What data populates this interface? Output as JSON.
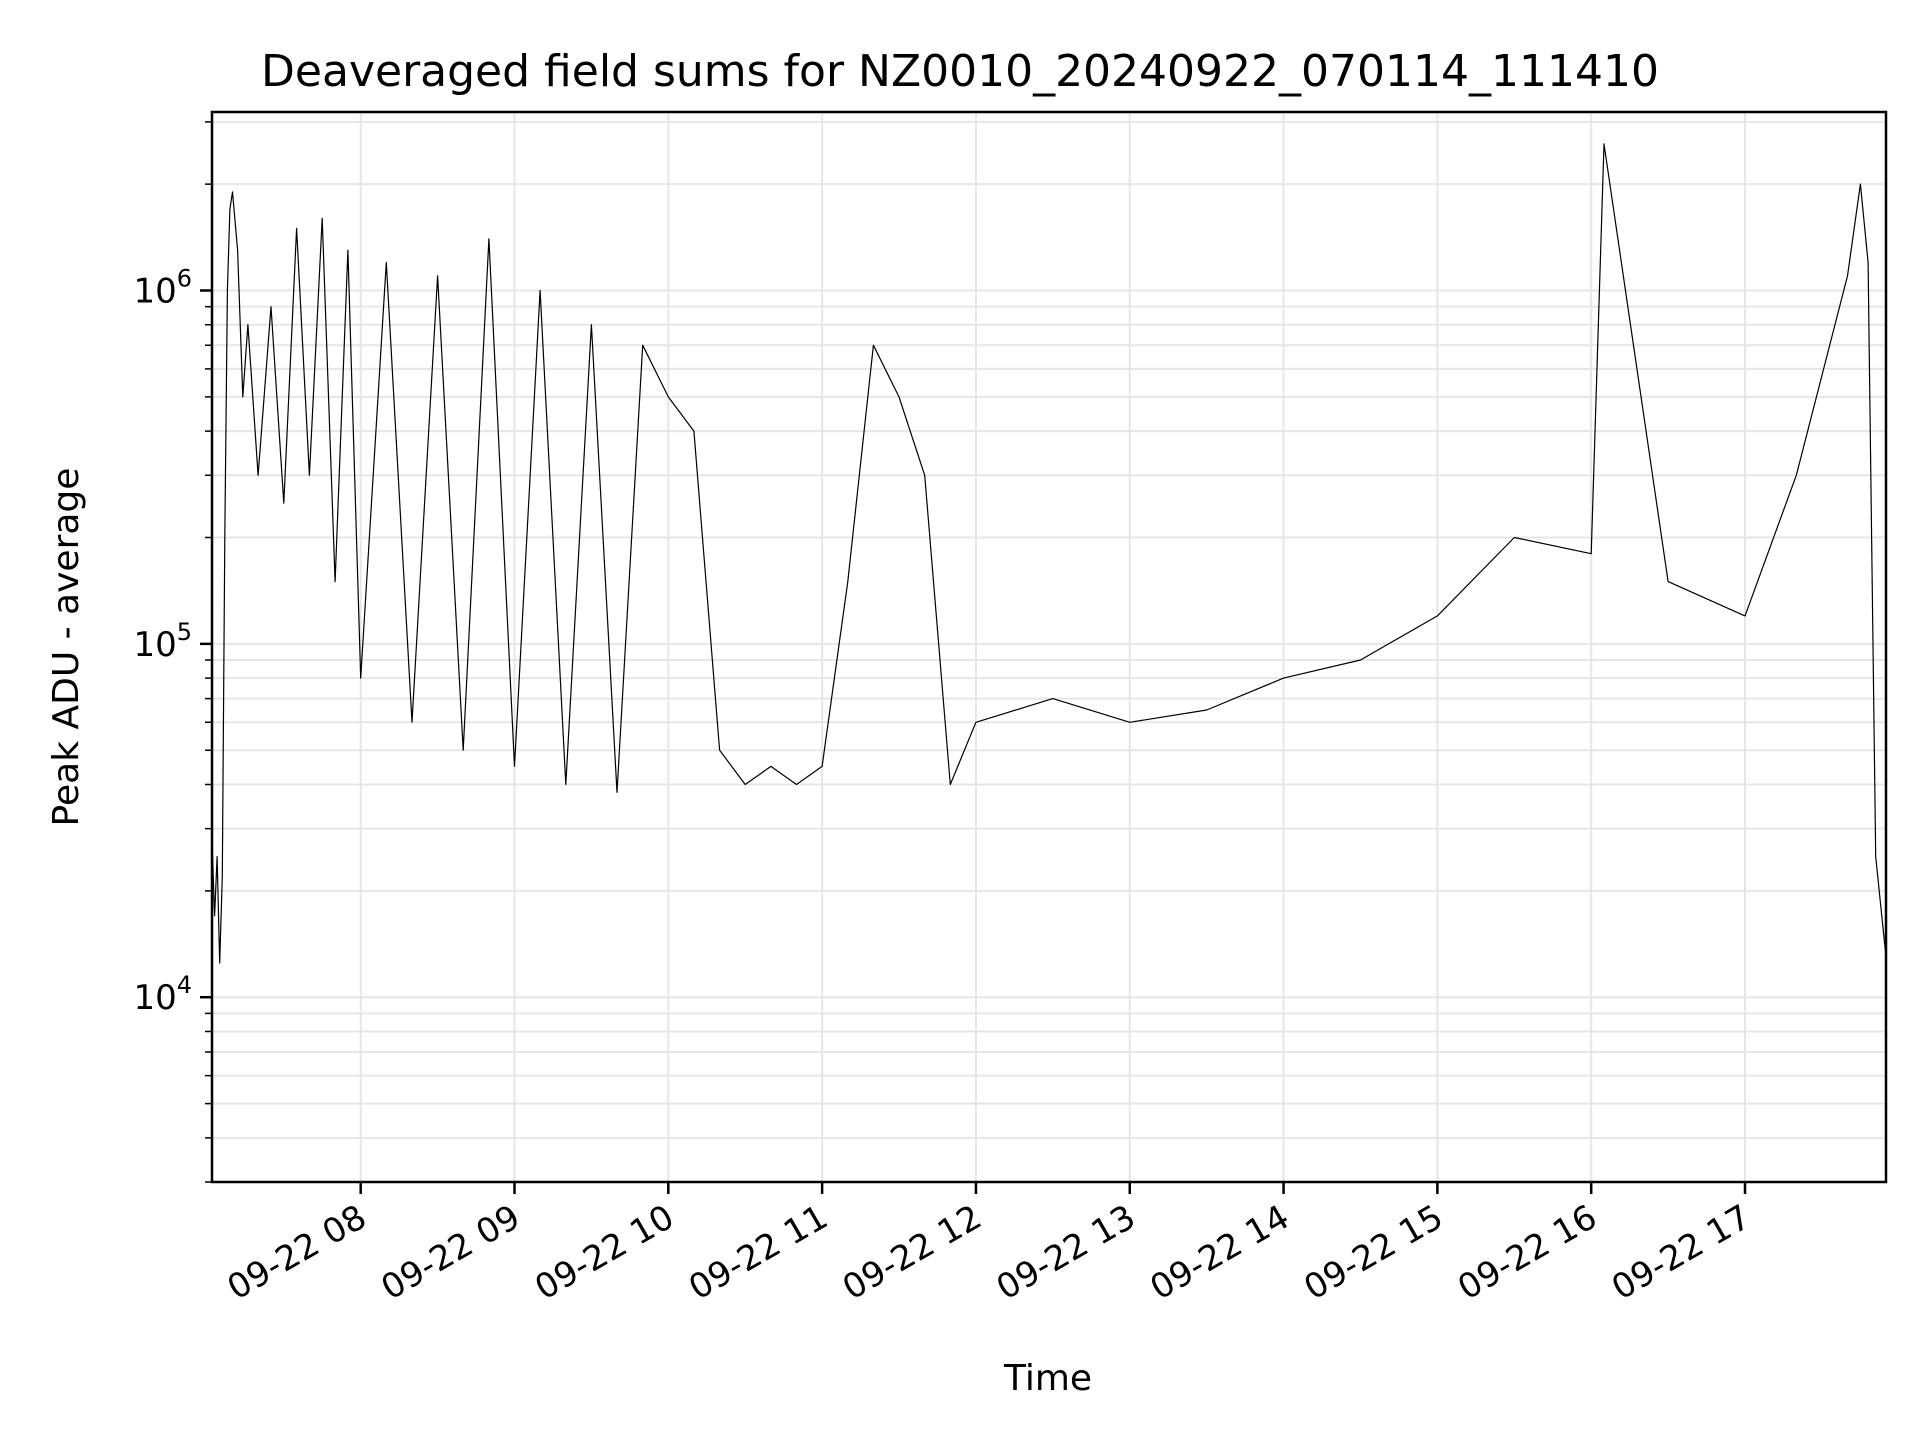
{
  "chart_data": {
    "type": "line",
    "title": "Deaveraged field sums for NZ0010_20240922_070114_111410",
    "xlabel": "Time",
    "ylabel": "Peak ADU - average",
    "yscale": "log",
    "ylim": [
      3000,
      3200000
    ],
    "xlim": [
      "2024-09-22 07:02",
      "2024-09-22 17:55"
    ],
    "grid": true,
    "x_ticks": [
      "09-22 08",
      "09-22 09",
      "09-22 10",
      "09-22 11",
      "09-22 12",
      "09-22 13",
      "09-22 14",
      "09-22 15",
      "09-22 16",
      "09-22 17"
    ],
    "y_ticks": [
      {
        "value": 10000,
        "base": "10",
        "exp": "4"
      },
      {
        "value": 100000,
        "base": "10",
        "exp": "5"
      },
      {
        "value": 1000000,
        "base": "10",
        "exp": "6"
      }
    ],
    "series": [
      {
        "color": "#000000",
        "x_hours_format": "hours of day",
        "points": [
          [
            "2024-09-22 07:02",
            28000
          ],
          [
            "2024-09-22 07:03",
            17000
          ],
          [
            "2024-09-22 07:04",
            25000
          ],
          [
            "2024-09-22 07:05",
            12500
          ],
          [
            "2024-09-22 07:06",
            22000
          ],
          [
            "2024-09-22 07:07",
            200000
          ],
          [
            "2024-09-22 07:08",
            1000000
          ],
          [
            "2024-09-22 07:09",
            1700000
          ],
          [
            "2024-09-22 07:10",
            1900000
          ],
          [
            "2024-09-22 07:12",
            1300000
          ],
          [
            "2024-09-22 07:14",
            500000
          ],
          [
            "2024-09-22 07:16",
            800000
          ],
          [
            "2024-09-22 07:20",
            300000
          ],
          [
            "2024-09-22 07:25",
            900000
          ],
          [
            "2024-09-22 07:30",
            250000
          ],
          [
            "2024-09-22 07:35",
            1500000
          ],
          [
            "2024-09-22 07:40",
            300000
          ],
          [
            "2024-09-22 07:45",
            1600000
          ],
          [
            "2024-09-22 07:50",
            150000
          ],
          [
            "2024-09-22 07:55",
            1300000
          ],
          [
            "2024-09-22 08:00",
            80000
          ],
          [
            "2024-09-22 08:10",
            1200000
          ],
          [
            "2024-09-22 08:20",
            60000
          ],
          [
            "2024-09-22 08:30",
            1100000
          ],
          [
            "2024-09-22 08:40",
            50000
          ],
          [
            "2024-09-22 08:50",
            1400000
          ],
          [
            "2024-09-22 09:00",
            45000
          ],
          [
            "2024-09-22 09:10",
            1000000
          ],
          [
            "2024-09-22 09:20",
            40000
          ],
          [
            "2024-09-22 09:30",
            800000
          ],
          [
            "2024-09-22 09:40",
            38000
          ],
          [
            "2024-09-22 09:50",
            700000
          ],
          [
            "2024-09-22 10:00",
            500000
          ],
          [
            "2024-09-22 10:10",
            400000
          ],
          [
            "2024-09-22 10:20",
            50000
          ],
          [
            "2024-09-22 10:30",
            40000
          ],
          [
            "2024-09-22 10:40",
            45000
          ],
          [
            "2024-09-22 10:50",
            40000
          ],
          [
            "2024-09-22 11:00",
            45000
          ],
          [
            "2024-09-22 11:10",
            150000
          ],
          [
            "2024-09-22 11:20",
            700000
          ],
          [
            "2024-09-22 11:30",
            500000
          ],
          [
            "2024-09-22 11:40",
            300000
          ],
          [
            "2024-09-22 11:50",
            40000
          ],
          [
            "2024-09-22 12:00",
            60000
          ],
          [
            "2024-09-22 12:30",
            70000
          ],
          [
            "2024-09-22 13:00",
            60000
          ],
          [
            "2024-09-22 13:30",
            65000
          ],
          [
            "2024-09-22 14:00",
            80000
          ],
          [
            "2024-09-22 14:30",
            90000
          ],
          [
            "2024-09-22 15:00",
            120000
          ],
          [
            "2024-09-22 15:30",
            200000
          ],
          [
            "2024-09-22 16:00",
            180000
          ],
          [
            "2024-09-22 16:05",
            2600000
          ],
          [
            "2024-09-22 16:30",
            150000
          ],
          [
            "2024-09-22 17:00",
            120000
          ],
          [
            "2024-09-22 17:20",
            300000
          ],
          [
            "2024-09-22 17:40",
            1100000
          ],
          [
            "2024-09-22 17:45",
            2000000
          ],
          [
            "2024-09-22 17:48",
            1200000
          ],
          [
            "2024-09-22 17:51",
            25000
          ],
          [
            "2024-09-22 17:55",
            13000
          ]
        ]
      }
    ]
  }
}
